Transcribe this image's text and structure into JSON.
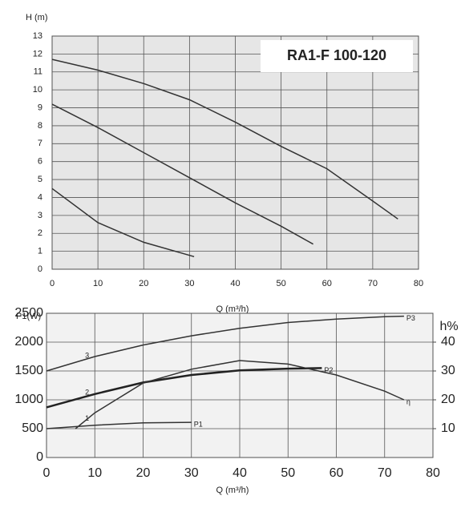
{
  "chart_data": [
    {
      "type": "line",
      "y_label": "H (m)",
      "x_label": "Q (m³/h)",
      "annotation": "RA1-F 100-120",
      "xlim": [
        0,
        80
      ],
      "xticks": [
        0,
        10,
        20,
        30,
        40,
        50,
        60,
        70,
        80
      ],
      "ylim": [
        0,
        13
      ],
      "yticks": [
        0,
        1,
        2,
        3,
        4,
        5,
        6,
        7,
        8,
        9,
        10,
        11,
        12,
        13
      ],
      "grid": true,
      "series": [
        {
          "color": "#333",
          "x": [
            0,
            10,
            20,
            30,
            40,
            50,
            60,
            70,
            75.5
          ],
          "values": [
            11.7,
            11.1,
            10.35,
            9.45,
            8.2,
            6.85,
            5.6,
            3.8,
            2.8
          ]
        },
        {
          "color": "#333",
          "x": [
            0,
            10,
            20,
            30,
            40,
            50,
            57
          ],
          "values": [
            9.2,
            7.9,
            6.5,
            5.1,
            3.7,
            2.4,
            1.4
          ]
        },
        {
          "color": "#333",
          "x": [
            0,
            10,
            20,
            31
          ],
          "values": [
            4.5,
            2.6,
            1.5,
            0.7
          ]
        }
      ]
    },
    {
      "type": "line",
      "y_label": "P1(W)",
      "y2_label": "h%",
      "x_label": "Q (m³/h)",
      "xlim": [
        0,
        80
      ],
      "xticks": [
        0,
        10,
        20,
        30,
        40,
        50,
        60,
        70,
        80
      ],
      "ylim": [
        0,
        2500
      ],
      "yticks": [
        0,
        500,
        1000,
        1500,
        2000,
        2500
      ],
      "y2lim": [
        0,
        50
      ],
      "y2ticks": [
        10,
        20,
        30,
        40
      ],
      "grid": true,
      "series": [
        {
          "name": "1",
          "label": "P1",
          "color": "#333",
          "x": [
            0,
            10,
            20,
            30
          ],
          "values": [
            500,
            560,
            600,
            610
          ]
        },
        {
          "name": "2",
          "label": "P2",
          "color": "#222",
          "x": [
            0,
            10,
            20,
            30,
            40,
            50,
            57
          ],
          "values": [
            870,
            1100,
            1300,
            1430,
            1510,
            1540,
            1550
          ]
        },
        {
          "name": "3",
          "label": "P3",
          "color": "#333",
          "x": [
            0,
            10,
            20,
            30,
            40,
            50,
            60,
            70,
            74
          ],
          "values": [
            1500,
            1750,
            1950,
            2110,
            2240,
            2340,
            2400,
            2440,
            2450
          ]
        },
        {
          "label": "η",
          "axis": "y2",
          "color": "#333",
          "x": [
            6,
            10,
            20,
            30,
            40,
            50,
            60,
            70,
            74
          ],
          "values": [
            10,
            15.5,
            25.8,
            30.6,
            33.6,
            32.4,
            28.6,
            23,
            20
          ]
        }
      ]
    }
  ]
}
